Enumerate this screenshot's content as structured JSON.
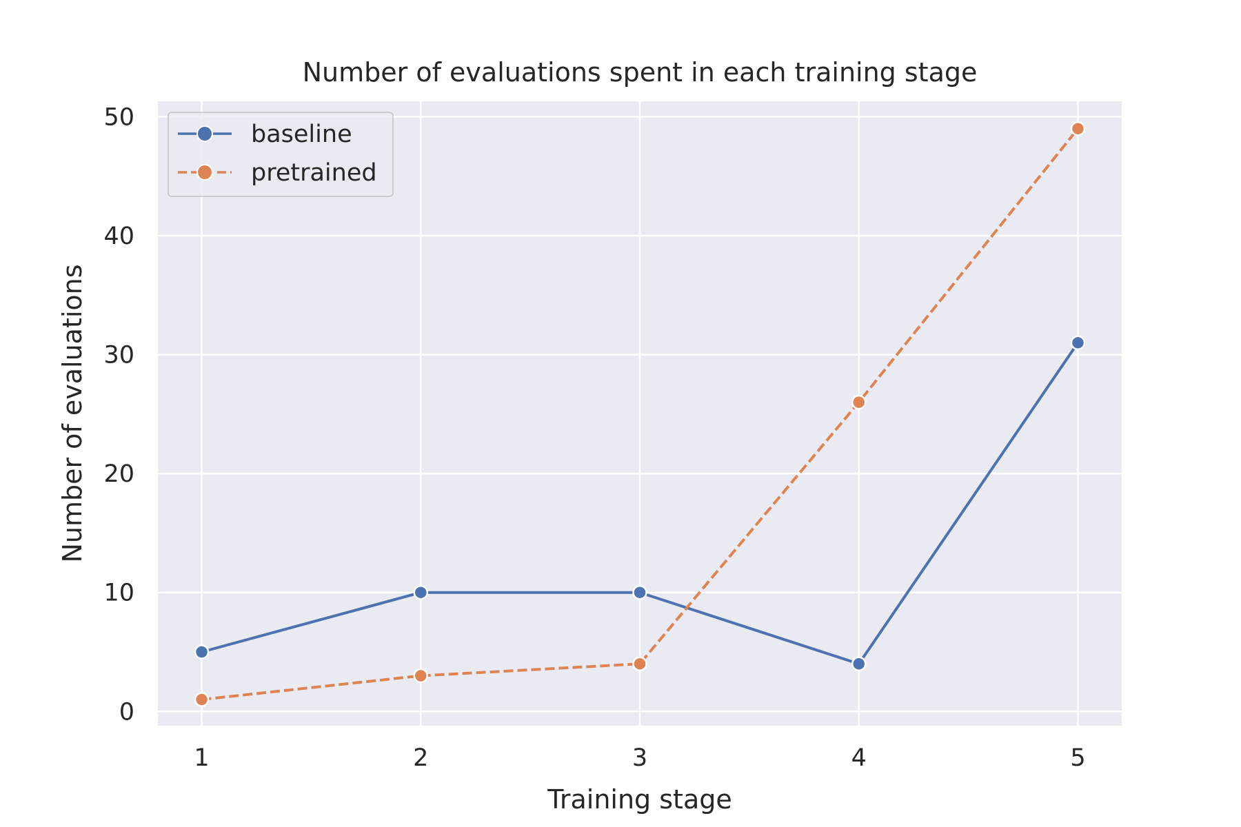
{
  "chart_data": {
    "type": "line",
    "title": "Number of evaluations spent in each training stage",
    "xlabel": "Training stage",
    "ylabel": "Number of evaluations",
    "x": [
      1,
      2,
      3,
      4,
      5
    ],
    "x_ticks": [
      "1",
      "2",
      "3",
      "4",
      "5"
    ],
    "y_ticks": [
      "0",
      "10",
      "20",
      "30",
      "40",
      "50"
    ],
    "xlim": [
      0.8,
      5.2
    ],
    "ylim": [
      -1.2,
      51.3
    ],
    "grid": true,
    "legend_position": "top-left",
    "background": "#eaeaf2",
    "series": [
      {
        "name": "baseline",
        "values": [
          5,
          10,
          10,
          4,
          31
        ],
        "color": "#4c72b0",
        "line_style": "solid",
        "marker": "circle"
      },
      {
        "name": "pretrained",
        "values": [
          1,
          3,
          4,
          26,
          49
        ],
        "color": "#dd8452",
        "line_style": "dashed",
        "marker": "circle"
      }
    ]
  }
}
